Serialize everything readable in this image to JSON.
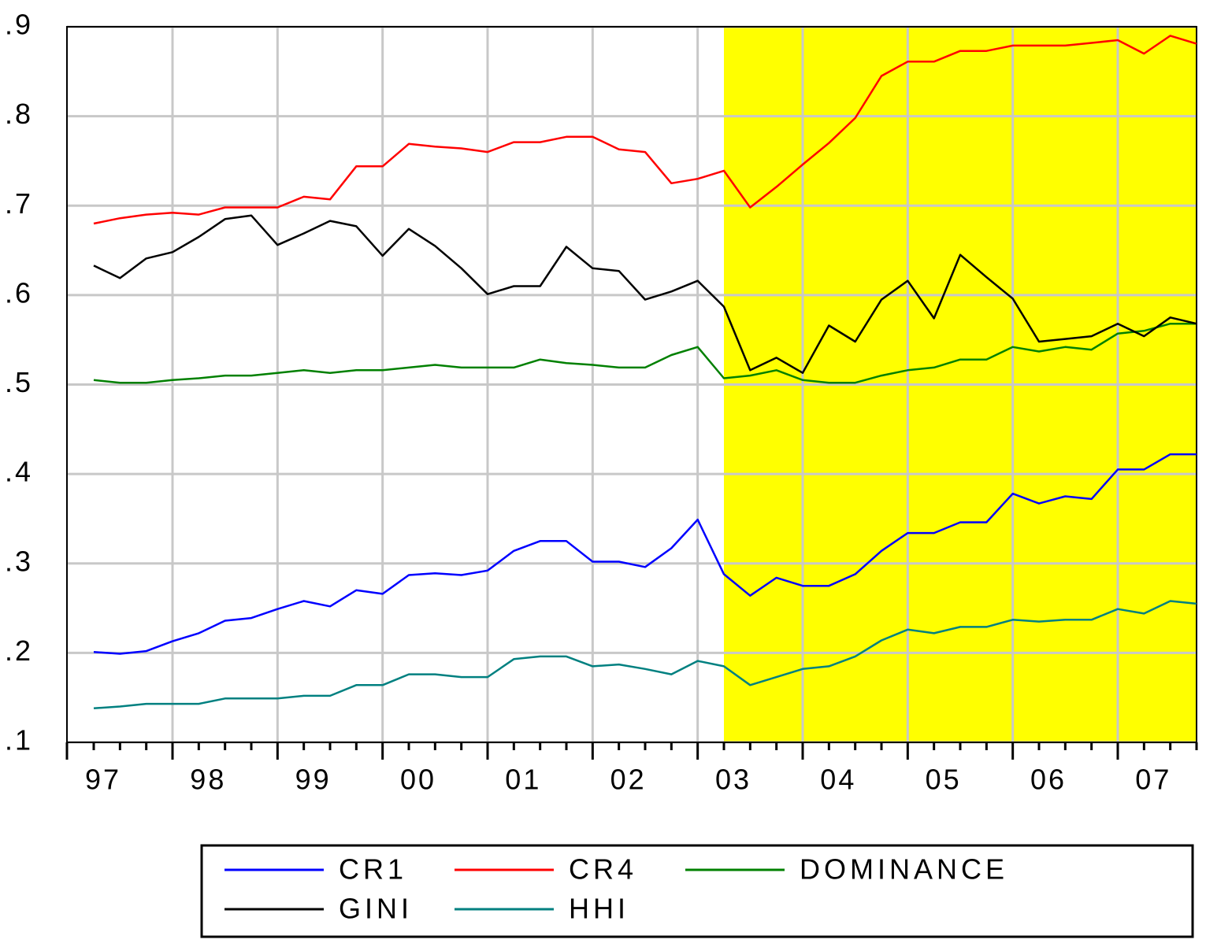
{
  "chart_data": {
    "type": "line",
    "categories": [
      "97",
      null,
      null,
      null,
      "98",
      null,
      null,
      null,
      "99",
      null,
      null,
      null,
      "00",
      null,
      null,
      null,
      "01",
      null,
      null,
      null,
      "02",
      null,
      null,
      null,
      "03",
      null,
      null,
      null,
      "04",
      null,
      null,
      null,
      "05",
      null,
      null,
      null,
      "06",
      null,
      null,
      null,
      "07",
      null,
      null
    ],
    "series": [
      {
        "name": "CR1",
        "color": "#0000ff",
        "values": [
          0.201,
          0.199,
          0.202,
          0.213,
          0.222,
          0.236,
          0.239,
          0.249,
          0.258,
          0.252,
          0.27,
          0.266,
          0.287,
          0.289,
          0.287,
          0.292,
          0.314,
          0.325,
          0.325,
          0.302,
          0.302,
          0.296,
          0.317,
          0.349,
          0.288,
          0.264,
          0.284,
          0.275,
          0.275,
          0.288,
          0.314,
          0.334,
          0.334,
          0.346,
          0.346,
          0.378,
          0.367,
          0.375,
          0.372,
          0.405,
          0.405,
          0.422,
          0.422
        ]
      },
      {
        "name": "CR4",
        "color": "#ff0000",
        "values": [
          0.68,
          0.686,
          0.69,
          0.692,
          0.69,
          0.698,
          0.698,
          0.698,
          0.71,
          0.707,
          0.744,
          0.744,
          0.769,
          0.766,
          0.764,
          0.76,
          0.771,
          0.771,
          0.777,
          0.777,
          0.763,
          0.76,
          0.725,
          0.73,
          0.739,
          0.698,
          0.721,
          0.746,
          0.77,
          0.798,
          0.845,
          0.861,
          0.861,
          0.873,
          0.873,
          0.879,
          0.879,
          0.879,
          0.882,
          0.885,
          0.87,
          0.89,
          0.881
        ]
      },
      {
        "name": "DOMINANCE",
        "color": "#008000",
        "values": [
          0.505,
          0.502,
          0.502,
          0.505,
          0.507,
          0.51,
          0.51,
          0.513,
          0.516,
          0.513,
          0.516,
          0.516,
          0.519,
          0.522,
          0.519,
          0.519,
          0.519,
          0.528,
          0.524,
          0.522,
          0.519,
          0.519,
          0.533,
          0.542,
          0.507,
          0.51,
          0.516,
          0.505,
          0.502,
          0.502,
          0.51,
          0.516,
          0.519,
          0.528,
          0.528,
          0.542,
          0.537,
          0.542,
          0.539,
          0.557,
          0.56,
          0.568,
          0.568
        ]
      },
      {
        "name": "GINI",
        "color": "#000000",
        "values": [
          0.633,
          0.619,
          0.641,
          0.648,
          0.665,
          0.685,
          0.689,
          0.656,
          0.669,
          0.683,
          0.677,
          0.644,
          0.674,
          0.655,
          0.63,
          0.601,
          0.61,
          0.61,
          0.654,
          0.63,
          0.627,
          0.595,
          0.604,
          0.616,
          0.587,
          0.516,
          0.53,
          0.513,
          0.566,
          0.548,
          0.595,
          0.616,
          0.574,
          0.645,
          0.62,
          0.596,
          0.548,
          0.551,
          0.554,
          0.568,
          0.554,
          0.575,
          0.568
        ]
      },
      {
        "name": "HHI",
        "color": "#008080",
        "values": [
          0.138,
          0.14,
          0.143,
          0.143,
          0.143,
          0.149,
          0.149,
          0.149,
          0.152,
          0.152,
          0.164,
          0.164,
          0.176,
          0.176,
          0.173,
          0.173,
          0.193,
          0.196,
          0.196,
          0.185,
          0.187,
          0.182,
          0.176,
          0.191,
          0.185,
          0.164,
          0.173,
          0.182,
          0.185,
          0.196,
          0.214,
          0.226,
          0.222,
          0.229,
          0.229,
          0.237,
          0.235,
          0.237,
          0.237,
          0.249,
          0.244,
          0.258,
          0.255
        ]
      }
    ],
    "ylim": [
      0.1,
      0.9
    ],
    "yticks": [
      {
        "value": 0.1,
        "label": ".1"
      },
      {
        "value": 0.2,
        "label": ".2"
      },
      {
        "value": 0.3,
        "label": ".3"
      },
      {
        "value": 0.4,
        "label": ".4"
      },
      {
        "value": 0.5,
        "label": ".5"
      },
      {
        "value": 0.6,
        "label": ".6"
      },
      {
        "value": 0.7,
        "label": ".7"
      },
      {
        "value": 0.8,
        "label": ".8"
      },
      {
        "value": 0.9,
        "label": ".9"
      }
    ],
    "grid": true,
    "shade": {
      "start": 24,
      "color": "#ffff00"
    },
    "legend": "bottom"
  }
}
